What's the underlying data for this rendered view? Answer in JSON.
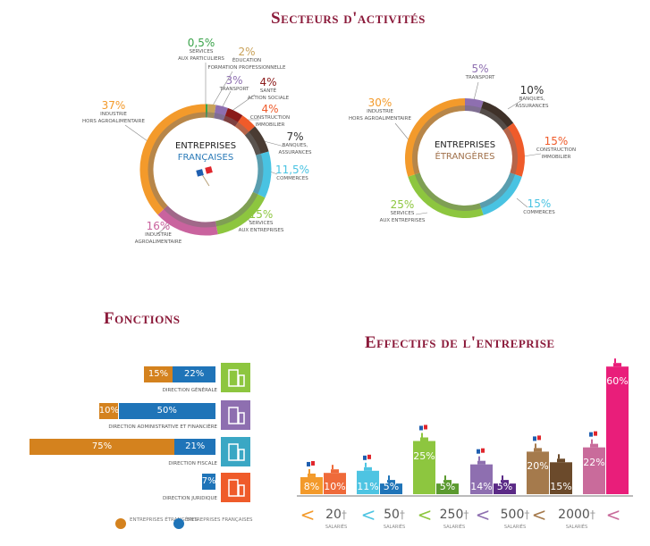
{
  "titles": {
    "secteurs": "Secteurs d'activités",
    "fonctions": "Fonctions",
    "effectifs": "Effectifs de l'entreprise"
  },
  "chart_data": [
    {
      "type": "pie",
      "center_line1": "ENTREPRISES",
      "center_line2": "FRANÇAISES",
      "slices": [
        {
          "value": 0.5,
          "label_pct": "0,5%",
          "lines": [
            "SERVICES",
            "AUX PARTICULIERS"
          ],
          "color": "#3aa34a"
        },
        {
          "value": 2,
          "label_pct": "2%",
          "lines": [
            "ÉDUCATION",
            "FORMATION PROFESSIONNELLE"
          ],
          "color": "#c9a25a"
        },
        {
          "value": 3,
          "label_pct": "3%",
          "lines": [
            "TRANSPORT"
          ],
          "color": "#8e6fb0"
        },
        {
          "value": 4,
          "label_pct": "4%",
          "lines": [
            "SANTÉ",
            "ACTION SOCIALE"
          ],
          "color": "#8b1a1a"
        },
        {
          "value": 4,
          "label_pct": "4%",
          "lines": [
            "CONSTRUCTION",
            "IMMOBILIER"
          ],
          "color": "#ef5b2a"
        },
        {
          "value": 7,
          "label_pct": "7%",
          "lines": [
            "BANQUES,",
            "ASSURANCES"
          ],
          "color": "#4a3c33"
        },
        {
          "value": 11.5,
          "label_pct": "11,5%",
          "lines": [
            "COMMERCES"
          ],
          "color": "#49c3e2"
        },
        {
          "value": 15,
          "label_pct": "15%",
          "lines": [
            "SERVICES",
            "AUX ENTREPRISES"
          ],
          "color": "#8dc63f"
        },
        {
          "value": 16,
          "label_pct": "16%",
          "lines": [
            "INDUSTRIE",
            "AGROALIMENTAIRE"
          ],
          "color": "#c9639e"
        },
        {
          "value": 37,
          "label_pct": "37%",
          "lines": [
            "INDUSTRIE",
            "HORS AGROALIMENTAIRE"
          ],
          "color": "#f39a2b"
        }
      ]
    },
    {
      "type": "pie",
      "center_line1": "ENTREPRISES",
      "center_line2": "ÉTRANGÈRES",
      "slices": [
        {
          "value": 5,
          "label_pct": "5%",
          "lines": [
            "TRANSPORT"
          ],
          "color": "#8e6fb0"
        },
        {
          "value": 10,
          "label_pct": "10%",
          "lines": [
            "BANQUES,",
            "ASSURANCES"
          ],
          "color": "#3f3129"
        },
        {
          "value": 15,
          "label_pct": "15%",
          "lines": [
            "CONSTRUCTION",
            "IMMOBILIER"
          ],
          "color": "#ef5b2a"
        },
        {
          "value": 15,
          "label_pct": "15%",
          "lines": [
            "COMMERCES"
          ],
          "color": "#49c3e2"
        },
        {
          "value": 25,
          "label_pct": "25%",
          "lines": [
            "SERVICES",
            "AUX ENTREPRISES"
          ],
          "color": "#8dc63f"
        },
        {
          "value": 30,
          "label_pct": "30%",
          "lines": [
            "INDUSTRIE",
            "HORS AGROALIMENTAIRE"
          ],
          "color": "#f39a2b"
        }
      ]
    },
    {
      "type": "bar",
      "orientation": "horizontal-stacked",
      "categories": [
        "DIRECTION GÉNÉRALE",
        "DIRECTION ADMINISTRATIVE ET FINANCIÈRE",
        "DIRECTION FISCALE",
        "DIRECTION JURIDIQUE"
      ],
      "icons": [
        "building-icon",
        "calculator-icon",
        "coins-icon",
        "scales-icon"
      ],
      "icon_colors": [
        "#8dc63f",
        "#8e6fb0",
        "#3aa7c4",
        "#ef5b2a"
      ],
      "series": [
        {
          "name": "ENTREPRISES ÉTRANGÈRES",
          "color": "#d4821e",
          "values": [
            15,
            10,
            75,
            null
          ],
          "labels": [
            "15%",
            "10%",
            "75%",
            ""
          ]
        },
        {
          "name": "ENTREPRISES FRANÇAISES",
          "color": "#1f74b8",
          "values": [
            22,
            50,
            21,
            7
          ],
          "labels": [
            "22%",
            "50%",
            "21%",
            "7%"
          ]
        }
      ]
    },
    {
      "type": "bar",
      "groups": [
        {
          "fr": 8,
          "fr_label": "8%",
          "et": 10,
          "et_label": "10%",
          "colors": [
            "#f39a2b",
            "#ef6a3a"
          ]
        },
        {
          "fr": 11,
          "fr_label": "11%",
          "et": 5,
          "et_label": "5%",
          "colors": [
            "#4ec4e2",
            "#1f74b8"
          ]
        },
        {
          "fr": 25,
          "fr_label": "25%",
          "et": 5,
          "et_label": "5%",
          "colors": [
            "#8dc63f",
            "#5b9a2f"
          ]
        },
        {
          "fr": 14,
          "fr_label": "14%",
          "et": 5,
          "et_label": "5%",
          "colors": [
            "#8e6fb0",
            "#5b2a86"
          ]
        },
        {
          "fr": 20,
          "fr_label": "20%",
          "et": 15,
          "et_label": "15%",
          "colors": [
            "#a57a4c",
            "#6b4a2b"
          ]
        },
        {
          "fr": 22,
          "fr_label": "22%",
          "et": 60,
          "et_label": "60%",
          "colors": [
            "#c96b9b",
            "#e91e7a"
          ]
        }
      ],
      "axis": {
        "separator": "<",
        "thresholds": [
          "20",
          "50",
          "250",
          "500",
          "2000"
        ],
        "unit": "SALARIÉS",
        "chevron_colors": [
          "#f39a2b",
          "#4ec4e2",
          "#8dc63f",
          "#8e6fb0",
          "#a57a4c",
          "#c96b9b"
        ]
      }
    }
  ]
}
